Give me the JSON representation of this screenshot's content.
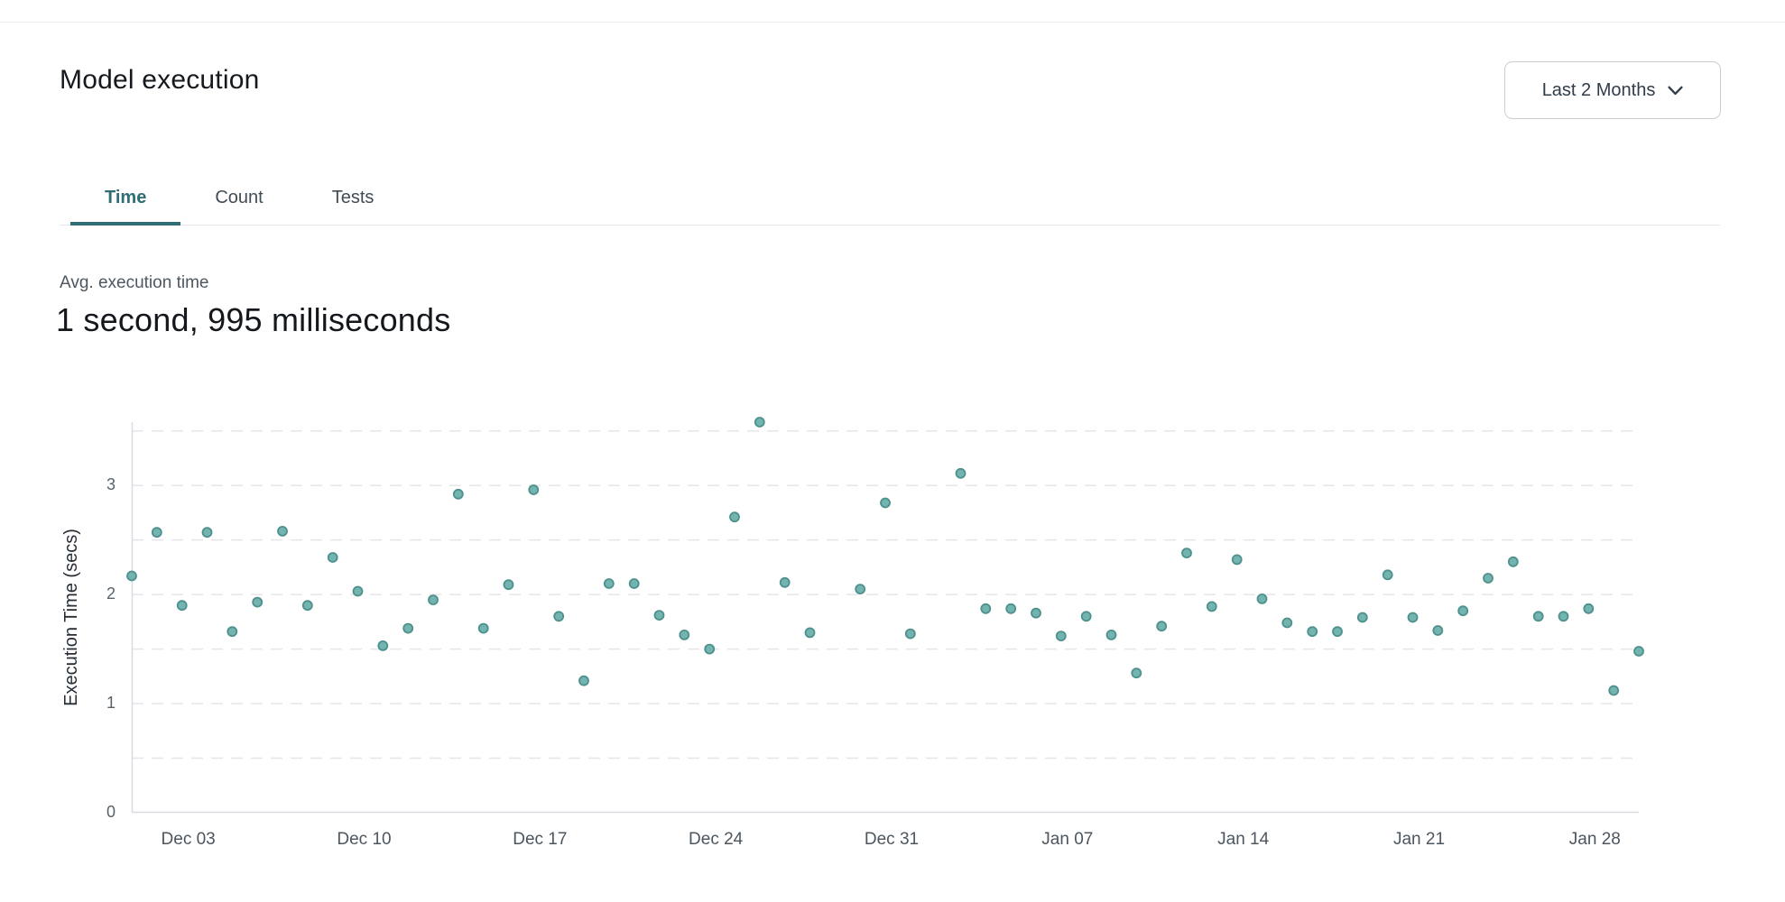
{
  "page": {
    "title": "Model execution"
  },
  "controls": {
    "range_selector": {
      "value": "Last 2 Months",
      "icon": "chevron-down-icon"
    }
  },
  "tabs": [
    {
      "label": "Time",
      "active": true
    },
    {
      "label": "Count",
      "active": false
    },
    {
      "label": "Tests",
      "active": false
    }
  ],
  "stat": {
    "label": "Avg. execution time",
    "value": "1 second, 995 milliseconds"
  },
  "colors": {
    "accent_teal": "#2e6e74",
    "point_fill": "#73b4b1",
    "point_stroke": "#4d908c",
    "gridline": "#e5e5eb",
    "axis_line": "#d8dce0"
  },
  "chart_data": {
    "type": "scatter",
    "title": "",
    "xlabel": "",
    "ylabel": "Execution Time (secs)",
    "ylim": [
      0,
      3.58
    ],
    "yticks": [
      0,
      1,
      2,
      3
    ],
    "grid_step": 0.5,
    "grid_max": 3.5,
    "grid_style": "dashed",
    "legend": "none",
    "x_domain_days": [
      0,
      60
    ],
    "x_ticks": [
      {
        "day": 2,
        "label": "Dec 03"
      },
      {
        "day": 9,
        "label": "Dec 10"
      },
      {
        "day": 16,
        "label": "Dec 17"
      },
      {
        "day": 23,
        "label": "Dec 24"
      },
      {
        "day": 30,
        "label": "Dec 31"
      },
      {
        "day": 37,
        "label": "Jan 07"
      },
      {
        "day": 44,
        "label": "Jan 14"
      },
      {
        "day": 51,
        "label": "Jan 21"
      },
      {
        "day": 58,
        "label": "Jan 28"
      }
    ],
    "points": [
      {
        "day": 0,
        "date": "Dec 01",
        "secs": 2.17
      },
      {
        "day": 1,
        "date": "Dec 02",
        "secs": 2.57
      },
      {
        "day": 2,
        "date": "Dec 03",
        "secs": 1.9
      },
      {
        "day": 3,
        "date": "Dec 04",
        "secs": 2.57
      },
      {
        "day": 4,
        "date": "Dec 05",
        "secs": 1.66
      },
      {
        "day": 5,
        "date": "Dec 06",
        "secs": 1.93
      },
      {
        "day": 6,
        "date": "Dec 07",
        "secs": 2.58
      },
      {
        "day": 7,
        "date": "Dec 08",
        "secs": 1.9
      },
      {
        "day": 8,
        "date": "Dec 09",
        "secs": 2.34
      },
      {
        "day": 9,
        "date": "Dec 10",
        "secs": 2.03
      },
      {
        "day": 10,
        "date": "Dec 11",
        "secs": 1.53
      },
      {
        "day": 11,
        "date": "Dec 12",
        "secs": 1.69
      },
      {
        "day": 12,
        "date": "Dec 13",
        "secs": 1.95
      },
      {
        "day": 13,
        "date": "Dec 14",
        "secs": 2.92
      },
      {
        "day": 14,
        "date": "Dec 15",
        "secs": 1.69
      },
      {
        "day": 15,
        "date": "Dec 16",
        "secs": 2.09
      },
      {
        "day": 16,
        "date": "Dec 17",
        "secs": 2.96
      },
      {
        "day": 17,
        "date": "Dec 18",
        "secs": 1.8
      },
      {
        "day": 18,
        "date": "Dec 19",
        "secs": 1.21
      },
      {
        "day": 19,
        "date": "Dec 20",
        "secs": 2.1
      },
      {
        "day": 20,
        "date": "Dec 21",
        "secs": 2.1
      },
      {
        "day": 21,
        "date": "Dec 22",
        "secs": 1.81
      },
      {
        "day": 22,
        "date": "Dec 23",
        "secs": 1.63
      },
      {
        "day": 23,
        "date": "Dec 24",
        "secs": 1.5
      },
      {
        "day": 24,
        "date": "Dec 25",
        "secs": 2.71
      },
      {
        "day": 25,
        "date": "Dec 26",
        "secs": 3.58
      },
      {
        "day": 26,
        "date": "Dec 27",
        "secs": 2.11
      },
      {
        "day": 27,
        "date": "Dec 28",
        "secs": 1.65
      },
      {
        "day": 29,
        "date": "Dec 30",
        "secs": 2.05
      },
      {
        "day": 30,
        "date": "Dec 31",
        "secs": 2.84
      },
      {
        "day": 31,
        "date": "Jan 01",
        "secs": 1.64
      },
      {
        "day": 33,
        "date": "Jan 03",
        "secs": 3.11
      },
      {
        "day": 34,
        "date": "Jan 04",
        "secs": 1.87
      },
      {
        "day": 35,
        "date": "Jan 05",
        "secs": 1.87
      },
      {
        "day": 36,
        "date": "Jan 06",
        "secs": 1.83
      },
      {
        "day": 37,
        "date": "Jan 07",
        "secs": 1.62
      },
      {
        "day": 38,
        "date": "Jan 08",
        "secs": 1.8
      },
      {
        "day": 39,
        "date": "Jan 09",
        "secs": 1.63
      },
      {
        "day": 40,
        "date": "Jan 10",
        "secs": 1.28
      },
      {
        "day": 41,
        "date": "Jan 11",
        "secs": 1.71
      },
      {
        "day": 42,
        "date": "Jan 12",
        "secs": 2.38
      },
      {
        "day": 43,
        "date": "Jan 13",
        "secs": 1.89
      },
      {
        "day": 44,
        "date": "Jan 14",
        "secs": 2.32
      },
      {
        "day": 45,
        "date": "Jan 15",
        "secs": 1.96
      },
      {
        "day": 46,
        "date": "Jan 16",
        "secs": 1.74
      },
      {
        "day": 47,
        "date": "Jan 17",
        "secs": 1.66
      },
      {
        "day": 48,
        "date": "Jan 18",
        "secs": 1.66
      },
      {
        "day": 49,
        "date": "Jan 19",
        "secs": 1.79
      },
      {
        "day": 50,
        "date": "Jan 20",
        "secs": 2.18
      },
      {
        "day": 51,
        "date": "Jan 21",
        "secs": 1.79
      },
      {
        "day": 52,
        "date": "Jan 22",
        "secs": 1.67
      },
      {
        "day": 53,
        "date": "Jan 23",
        "secs": 1.85
      },
      {
        "day": 54,
        "date": "Jan 24",
        "secs": 2.15
      },
      {
        "day": 55,
        "date": "Jan 25",
        "secs": 2.3
      },
      {
        "day": 56,
        "date": "Jan 26",
        "secs": 1.8
      },
      {
        "day": 57,
        "date": "Jan 27",
        "secs": 1.8
      },
      {
        "day": 58,
        "date": "Jan 28",
        "secs": 1.87
      },
      {
        "day": 59,
        "date": "Jan 29",
        "secs": 1.12
      },
      {
        "day": 60,
        "date": "Jan 30",
        "secs": 1.48
      }
    ]
  }
}
